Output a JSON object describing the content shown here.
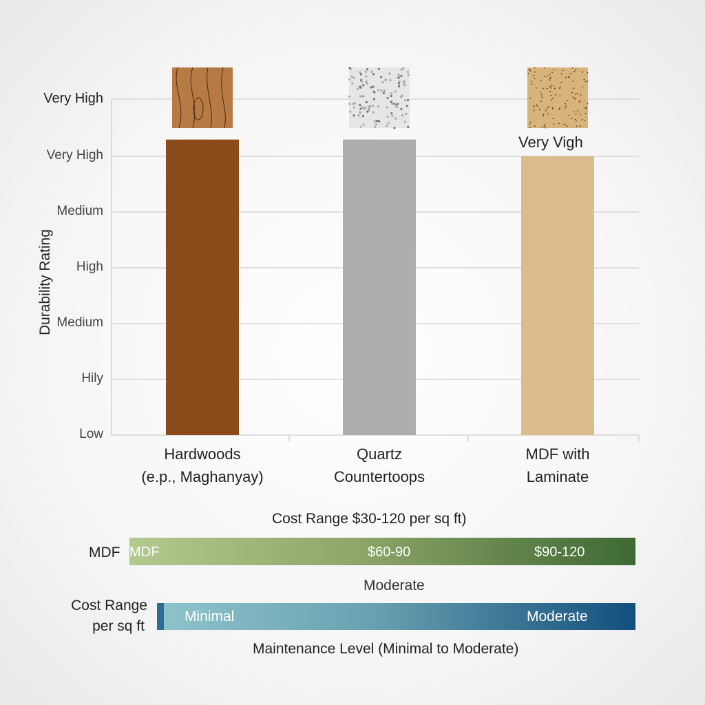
{
  "chart_data": {
    "type": "bar",
    "ylabel": "Durability Rating",
    "ytick_labels": [
      "Low",
      "Hily",
      "Medium",
      "High",
      "Medium",
      "Very High",
      "Very High"
    ],
    "ylim": [
      0,
      6
    ],
    "grid": true,
    "categories": [
      "Hardwoods (e.p., Maghanyay)",
      "Quartz Countertoops",
      "MDF with Laminate"
    ],
    "category_lines": [
      [
        "Hardwoods",
        "(e.p., Maghanyay)"
      ],
      [
        "Quartz",
        "Countertoops"
      ],
      [
        "MDF with",
        "Laminate"
      ]
    ],
    "values": [
      5.3,
      5.3,
      5.0
    ],
    "colors": [
      "#8a4a1a",
      "#adadad",
      "#dcbb8c"
    ],
    "bar_annotation": "Very Vigh",
    "swatches": [
      "wood-grain-swatch",
      "quartz-speckle-swatch",
      "mdf-particle-swatch"
    ]
  },
  "cost": {
    "title": "Cost Range $30-120 per sq ft)",
    "row_label": "MDF",
    "segments": [
      "MDF",
      "$60-90",
      "$90-120"
    ],
    "colors": [
      "#b3c98e",
      "#3e6934"
    ]
  },
  "maintenance": {
    "top_label": "Moderate",
    "row_label": [
      "Cost Range",
      "per sq ft"
    ],
    "segments": [
      "Minimal",
      "Moderate"
    ],
    "title": "Maintenance Level (Minimal to Moderate)",
    "colors": [
      "#8cc3cb",
      "#124f7c"
    ]
  }
}
